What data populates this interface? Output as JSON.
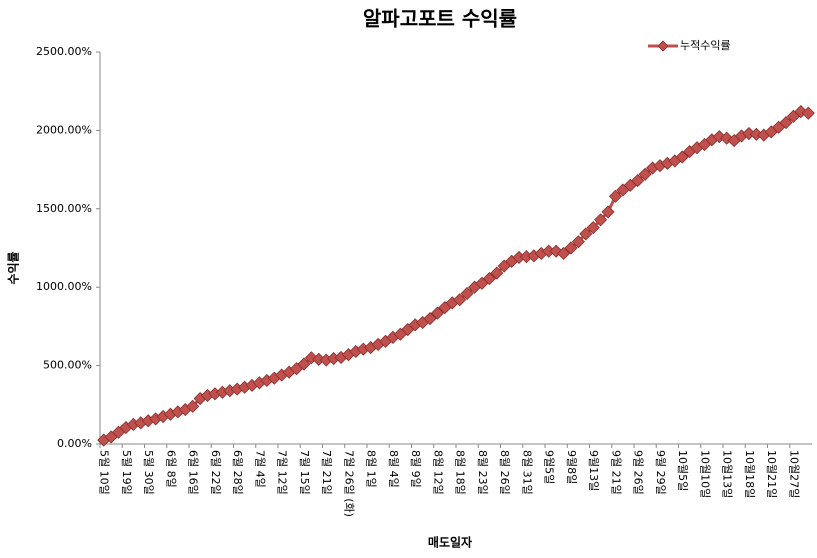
{
  "chart_data": {
    "type": "line",
    "title": "알파고포트 수익률",
    "x_label": "매도일자",
    "y_label": "수익률",
    "categories": [
      "5월 10일",
      null,
      null,
      "5월 19일",
      null,
      null,
      "5월 30일",
      null,
      null,
      "6월 8일",
      null,
      null,
      "6월 16일",
      null,
      null,
      "6월 22일",
      null,
      null,
      "6월 28일",
      null,
      null,
      "7월 4일",
      null,
      null,
      "7월 12일",
      null,
      null,
      "7월 15일",
      null,
      null,
      "7월 21일",
      null,
      null,
      "7월 26일 (화)",
      null,
      null,
      "8월 1일",
      null,
      null,
      "8월 4일",
      null,
      null,
      "8월 9일",
      null,
      null,
      "8월 12일",
      null,
      null,
      "8월 18일",
      null,
      null,
      "8월 23일",
      null,
      null,
      "8월 26일",
      null,
      null,
      "8월 31일",
      null,
      null,
      "9월5일",
      null,
      null,
      "9월8일",
      null,
      null,
      "9월13일",
      null,
      null,
      "9월 21일",
      null,
      null,
      "9월 26일",
      null,
      null,
      "9월 29일",
      null,
      null,
      "10월5일",
      null,
      null,
      "10월10일",
      null,
      null,
      "10월13일",
      null,
      null,
      "10월18일",
      null,
      null,
      "10월21일",
      null,
      null,
      "10월27일",
      null,
      null
    ],
    "series": [
      {
        "name": "누적수익률",
        "color": "#c0504d",
        "values": [
          25,
          45,
          75,
          105,
          125,
          135,
          148,
          160,
          175,
          190,
          205,
          220,
          240,
          290,
          310,
          320,
          330,
          340,
          350,
          362,
          374,
          390,
          405,
          420,
          440,
          458,
          480,
          510,
          550,
          540,
          535,
          545,
          552,
          570,
          590,
          605,
          615,
          635,
          655,
          680,
          700,
          730,
          760,
          775,
          800,
          835,
          870,
          900,
          920,
          960,
          1000,
          1025,
          1055,
          1090,
          1135,
          1165,
          1190,
          1195,
          1200,
          1215,
          1230,
          1230,
          1215,
          1250,
          1290,
          1340,
          1380,
          1430,
          1480,
          1580,
          1620,
          1650,
          1680,
          1720,
          1760,
          1775,
          1790,
          1805,
          1830,
          1865,
          1890,
          1910,
          1940,
          1960,
          1950,
          1935,
          1965,
          1980,
          1975,
          1970,
          1990,
          2020,
          2050,
          2090,
          2120,
          2110
        ]
      }
    ],
    "ylim": [
      0,
      2500
    ],
    "yticks": [
      {
        "value": 0,
        "label": "0.00%"
      },
      {
        "value": 500,
        "label": "500.00%"
      },
      {
        "value": 1000,
        "label": "1000.00%"
      },
      {
        "value": 1500,
        "label": "1500.00%"
      },
      {
        "value": 2000,
        "label": "2000.00%"
      },
      {
        "value": 2500,
        "label": "2500.00%"
      }
    ],
    "legend": "upper right",
    "grid": false
  }
}
